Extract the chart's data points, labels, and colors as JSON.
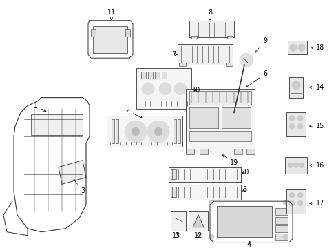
{
  "background_color": "#ffffff",
  "fig_width": 4.89,
  "fig_height": 3.6,
  "dpi": 100,
  "line_color": "#333333",
  "label_color": "#000000",
  "font_size": 7.0
}
